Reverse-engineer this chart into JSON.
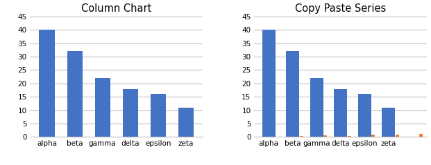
{
  "categories": [
    "alpha",
    "beta",
    "gamma",
    "delta",
    "epsilon",
    "zeta"
  ],
  "values_blue": [
    40,
    32,
    22,
    18,
    16,
    11
  ],
  "values_orange": [
    0,
    0.3,
    0.5,
    0.4,
    0.8,
    0.9
  ],
  "extra_orange_val": 1.0,
  "title_left": "Column Chart",
  "title_right": "Copy Paste Series",
  "blue_color": "#4472C4",
  "orange_color": "#ED7D31",
  "ylim": [
    0,
    45
  ],
  "yticks": [
    0,
    5,
    10,
    15,
    20,
    25,
    30,
    35,
    40,
    45
  ],
  "blue_bar_width": 0.55,
  "orange_bar_width": 0.15,
  "grid_color": "#C0C0C0",
  "background_color": "#FFFFFF",
  "title_fontsize": 10.5,
  "tick_fontsize": 7.5
}
